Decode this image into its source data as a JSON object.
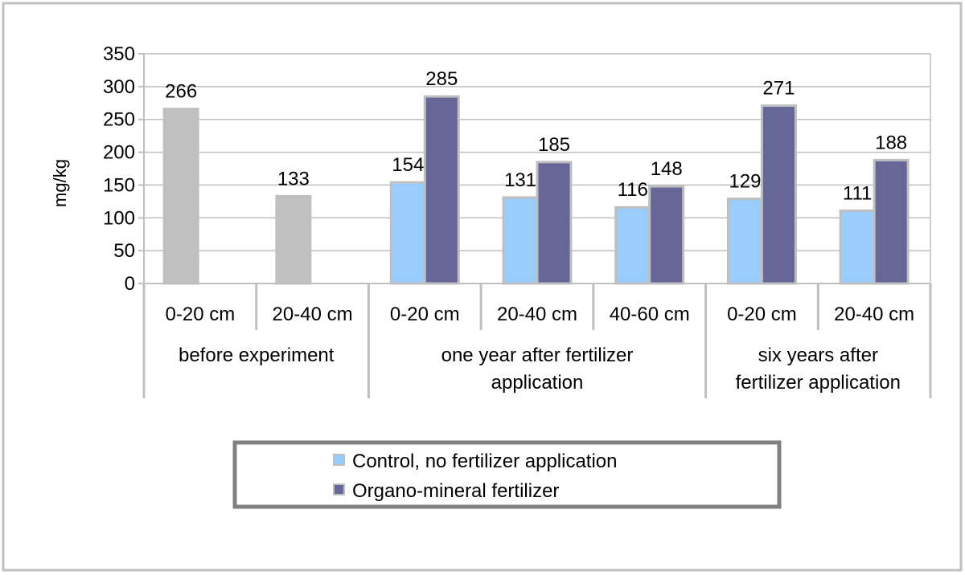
{
  "colors": {
    "frame": "#c0c0c0",
    "gridline": "#bfbfbf",
    "axis": "#bfbfbf",
    "before_bar": "#c0c0c0",
    "control_bar": "#99ccff",
    "organo_bar": "#666699",
    "bar_outline": "#bfbfbf",
    "legend_border": "#808080"
  },
  "chart_data": {
    "type": "bar",
    "ylabel": "mg/kg",
    "ylim": [
      0,
      350
    ],
    "ytick_step": 50,
    "yticks": [
      "0",
      "50",
      "100",
      "150",
      "200",
      "250",
      "300",
      "350"
    ],
    "grid": true,
    "legend_position": "bottom",
    "groups": [
      {
        "label": "before experiment",
        "label_lines": [
          "before experiment"
        ],
        "categories": [
          {
            "label": "0-20 cm",
            "bars": [
              {
                "series": "before",
                "value": 266,
                "label": "266"
              }
            ]
          },
          {
            "label": "20-40 cm",
            "bars": [
              {
                "series": "before",
                "value": 133,
                "label": "133"
              }
            ]
          }
        ]
      },
      {
        "label": "one year after fertilizer application",
        "label_lines": [
          "one year after fertilizer",
          "application"
        ],
        "categories": [
          {
            "label": "0-20 cm",
            "bars": [
              {
                "series": "control",
                "value": 154,
                "label": "154"
              },
              {
                "series": "organo",
                "value": 285,
                "label": "285"
              }
            ]
          },
          {
            "label": "20-40 cm",
            "bars": [
              {
                "series": "control",
                "value": 131,
                "label": "131"
              },
              {
                "series": "organo",
                "value": 185,
                "label": "185"
              }
            ]
          },
          {
            "label": "40-60 cm",
            "bars": [
              {
                "series": "control",
                "value": 116,
                "label": "116"
              },
              {
                "series": "organo",
                "value": 148,
                "label": "148"
              }
            ]
          }
        ]
      },
      {
        "label": "six years after fertilizer application",
        "label_lines": [
          "six years after",
          "fertilizer application"
        ],
        "categories": [
          {
            "label": "0-20 cm",
            "bars": [
              {
                "series": "control",
                "value": 129,
                "label": "129"
              },
              {
                "series": "organo",
                "value": 271,
                "label": "271"
              }
            ]
          },
          {
            "label": "20-40 cm",
            "bars": [
              {
                "series": "control",
                "value": 111,
                "label": "111"
              },
              {
                "series": "organo",
                "value": 188,
                "label": "188"
              }
            ]
          }
        ]
      }
    ],
    "legend": [
      {
        "key": "control",
        "name": "Control, no fertilizer application"
      },
      {
        "key": "organo",
        "name": "Organo-mineral fertilizer"
      }
    ]
  }
}
